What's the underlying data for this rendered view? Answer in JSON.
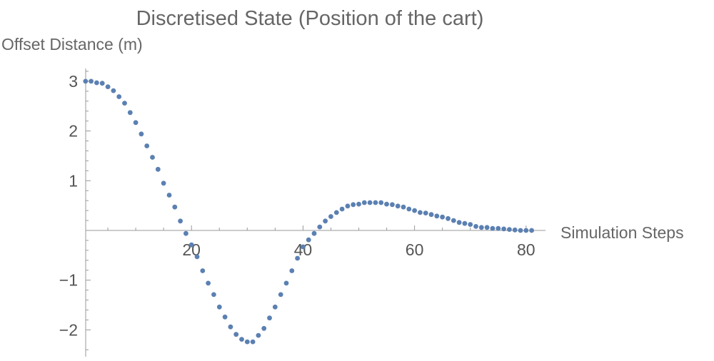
{
  "chart_data": {
    "type": "scatter",
    "title": "Discretised State (Position of the cart)",
    "ylabel": "Offset Distance (m)",
    "xlabel": "Simulation Steps",
    "xlim": [
      0,
      82
    ],
    "ylim": [
      -2.5,
      3.3
    ],
    "x_ticks_labeled": [
      20,
      40,
      60,
      80
    ],
    "x_tick_labels": [
      "20",
      "40",
      "60",
      "80"
    ],
    "x_ticks_minor": [
      5,
      10,
      15,
      25,
      30,
      35,
      45,
      50,
      55,
      65,
      70,
      75
    ],
    "y_ticks_labeled": [
      -2,
      -1,
      1,
      2,
      3
    ],
    "y_tick_labels": [
      "−2",
      "−1",
      "1",
      "2",
      "3"
    ],
    "y_ticks_minor": [
      -2.4,
      -1.8,
      -1.6,
      -1.4,
      -1.2,
      -0.8,
      -0.6,
      -0.4,
      -0.2,
      0.2,
      0.4,
      0.6,
      0.8,
      1.2,
      1.4,
      1.6,
      1.8,
      2.2,
      2.4,
      2.6,
      2.8,
      3.2
    ],
    "grid": false,
    "marker_color": "#5b80b2",
    "series": [
      {
        "x": [
          1,
          2,
          3,
          4,
          5,
          6,
          7,
          8,
          9,
          10,
          11,
          12,
          13,
          14,
          15,
          16,
          17,
          18,
          19,
          20,
          21,
          22,
          23,
          24,
          25,
          26,
          27,
          28,
          29,
          30,
          31,
          32,
          33,
          34,
          35,
          36,
          37,
          38,
          39,
          40,
          41,
          42,
          43,
          44,
          45,
          46,
          47,
          48,
          49,
          50,
          51,
          52,
          53,
          54,
          55,
          56,
          57,
          58,
          59,
          60,
          61,
          62,
          63,
          64,
          65,
          66,
          67,
          68,
          69,
          70,
          71,
          72,
          73,
          74,
          75,
          76,
          77,
          78,
          79,
          80,
          81
        ],
        "y": [
          3.0,
          3.0,
          2.97,
          2.96,
          2.89,
          2.81,
          2.69,
          2.56,
          2.37,
          2.17,
          1.94,
          1.7,
          1.47,
          1.23,
          0.95,
          0.71,
          0.47,
          0.19,
          -0.06,
          -0.29,
          -0.53,
          -0.81,
          -1.06,
          -1.29,
          -1.54,
          -1.74,
          -1.94,
          -2.09,
          -2.19,
          -2.24,
          -2.24,
          -2.11,
          -1.97,
          -1.76,
          -1.54,
          -1.29,
          -1.06,
          -0.81,
          -0.56,
          -0.33,
          -0.19,
          -0.06,
          0.07,
          0.19,
          0.28,
          0.36,
          0.43,
          0.49,
          0.52,
          0.53,
          0.56,
          0.56,
          0.56,
          0.56,
          0.53,
          0.52,
          0.49,
          0.47,
          0.43,
          0.4,
          0.36,
          0.35,
          0.32,
          0.29,
          0.27,
          0.24,
          0.2,
          0.16,
          0.14,
          0.12,
          0.08,
          0.06,
          0.06,
          0.04,
          0.04,
          0.03,
          0.02,
          0.01,
          0.0,
          0.0,
          0.0
        ]
      }
    ]
  }
}
